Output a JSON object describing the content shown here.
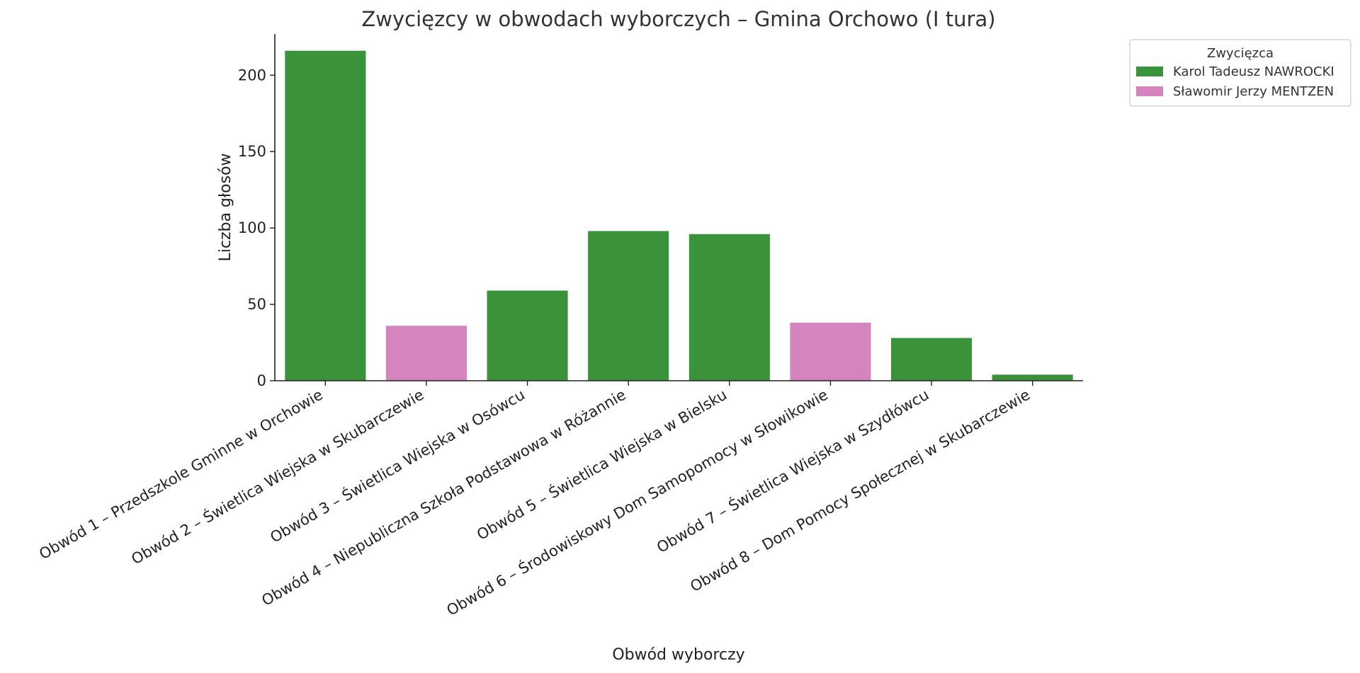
{
  "chart_data": {
    "type": "bar",
    "title": "Zwycięzcy w obwodach wyborczych – Gmina Orchowo (I tura)",
    "xlabel": "Obwód wyborczy",
    "ylabel": "Liczba głosów",
    "ylim": [
      0,
      227
    ],
    "yticks": [
      0,
      50,
      100,
      150,
      200
    ],
    "grid": false,
    "legend_position": "top-right outside",
    "legend_title": "Zwycięzca",
    "series_colors": {
      "Karol Tadeusz NAWROCKI": "#3a923a",
      "Sławomir Jerzy MENTZEN": "#d684bd"
    },
    "legend": [
      {
        "name": "Karol Tadeusz NAWROCKI",
        "color": "#3a923a"
      },
      {
        "name": "Sławomir Jerzy MENTZEN",
        "color": "#d684bd"
      }
    ],
    "categories": [
      "Obwód 1 – Przedszkole Gminne w Orchowie",
      "Obwód 2 – Świetlica Wiejska w Skubarczewie",
      "Obwód 3 – Świetlica Wiejska w Osówcu",
      "Obwód 4 – Niepubliczna Szkoła Podstawowa w Różannie",
      "Obwód 5 – Świetlica Wiejska w Bielsku",
      "Obwód 6 – Środowiskowy Dom Samopomocy w Słowikowie",
      "Obwód 7 – Świetlica Wiejska w Szydłówcu",
      "Obwód 8 – Dom Pomocy Społecznej w Skubarczewie"
    ],
    "values": [
      216,
      36,
      59,
      98,
      96,
      38,
      28,
      4
    ],
    "winners": [
      "Karol Tadeusz NAWROCKI",
      "Sławomir Jerzy MENTZEN",
      "Karol Tadeusz NAWROCKI",
      "Karol Tadeusz NAWROCKI",
      "Karol Tadeusz NAWROCKI",
      "Sławomir Jerzy MENTZEN",
      "Karol Tadeusz NAWROCKI",
      "Karol Tadeusz NAWROCKI"
    ]
  }
}
